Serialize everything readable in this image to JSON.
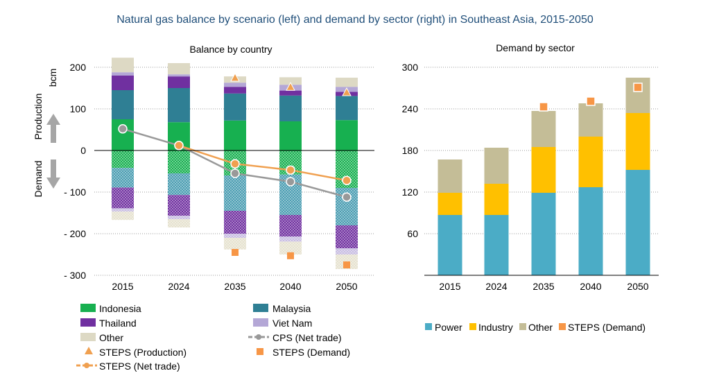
{
  "title": "Natural gas balance by scenario (left) and demand by sector (right) in Southeast Asia, 2015-2050",
  "colors": {
    "indonesia": "#17b050",
    "malaysia": "#2f7f94",
    "thailand": "#7030a0",
    "viet_nam": "#b4a7d6",
    "other_left": "#ddd9c4",
    "cps_net_trade": "#999999",
    "steps": "#f0a050",
    "power": "#4bacc6",
    "industry": "#ffc000",
    "other_right": "#c4bd97",
    "steps_demand": "#f79646"
  },
  "chart_data": [
    {
      "type": "bar",
      "subtitle": "Balance by country",
      "unit_label": "bcm",
      "up_label": "Production",
      "down_label": "Demand",
      "categories": [
        "2015",
        "2024",
        "2035",
        "2040",
        "2050"
      ],
      "ylim": [
        -300,
        200
      ],
      "y_ticks": [
        200,
        100,
        0,
        -100,
        -200,
        -300
      ],
      "y_tick_labels": [
        "200",
        "100",
        "0",
        "- 100",
        "- 200",
        "- 300"
      ],
      "grid": true,
      "production": [
        {
          "key": "indonesia",
          "name": "Indonesia",
          "values": [
            75,
            68,
            72,
            70,
            73
          ]
        },
        {
          "key": "malaysia",
          "name": "Malaysia",
          "values": [
            70,
            82,
            65,
            62,
            58
          ]
        },
        {
          "key": "thailand",
          "name": "Thailand",
          "values": [
            35,
            28,
            16,
            12,
            10
          ]
        },
        {
          "key": "viet_nam",
          "name": "Viet Nam",
          "values": [
            8,
            5,
            10,
            14,
            12
          ]
        },
        {
          "key": "other_left",
          "name": "Other",
          "values": [
            35,
            27,
            15,
            18,
            22
          ]
        }
      ],
      "demand": [
        {
          "key": "indonesia",
          "name": "Indonesia",
          "values": [
            -42,
            -55,
            -60,
            -58,
            -90
          ]
        },
        {
          "key": "malaysia",
          "name": "Malaysia",
          "values": [
            -47,
            -52,
            -85,
            -97,
            -90
          ]
        },
        {
          "key": "thailand",
          "name": "Thailand",
          "values": [
            -50,
            -50,
            -55,
            -52,
            -55
          ]
        },
        {
          "key": "viet_nam",
          "name": "Viet Nam",
          "values": [
            -8,
            -8,
            -10,
            -12,
            -15
          ]
        },
        {
          "key": "other_left",
          "name": "Other",
          "values": [
            -20,
            -20,
            -28,
            -31,
            -35
          ]
        }
      ],
      "steps_production": [
        null,
        null,
        175,
        153,
        140
      ],
      "steps_demand": [
        null,
        null,
        -245,
        -253,
        -275
      ],
      "cps_net_trade": [
        52,
        12,
        -55,
        -75,
        -112
      ],
      "steps_net_trade": [
        null,
        12,
        -32,
        -47,
        -72
      ],
      "legend": {
        "indonesia": "Indonesia",
        "malaysia": "Malaysia",
        "thailand": "Thailand",
        "viet_nam": "Viet Nam",
        "other": "Other",
        "cps_net_trade": "CPS (Net trade)",
        "steps_production": "STEPS (Production)",
        "steps_demand": "STEPS (Demand)",
        "steps_net_trade": "STEPS (Net trade)"
      }
    },
    {
      "type": "bar",
      "subtitle": "Demand by sector",
      "categories": [
        "2015",
        "2024",
        "2035",
        "2040",
        "2050"
      ],
      "ylim": [
        0,
        300
      ],
      "y_ticks": [
        300,
        240,
        180,
        120,
        60
      ],
      "y_tick_labels": [
        "300",
        "240",
        "180",
        "120",
        "60"
      ],
      "grid": true,
      "series": [
        {
          "key": "power",
          "name": "Power",
          "values": [
            87,
            87,
            119,
            127,
            152
          ]
        },
        {
          "key": "industry",
          "name": "Industry",
          "values": [
            32,
            45,
            66,
            73,
            82
          ]
        },
        {
          "key": "other_right",
          "name": "Other",
          "values": [
            48,
            52,
            52,
            48,
            51
          ]
        }
      ],
      "steps_demand": [
        null,
        null,
        243,
        251,
        271
      ],
      "legend": {
        "power": "Power",
        "industry": "Industry",
        "other": "Other",
        "steps_demand": "STEPS (Demand)"
      }
    }
  ]
}
